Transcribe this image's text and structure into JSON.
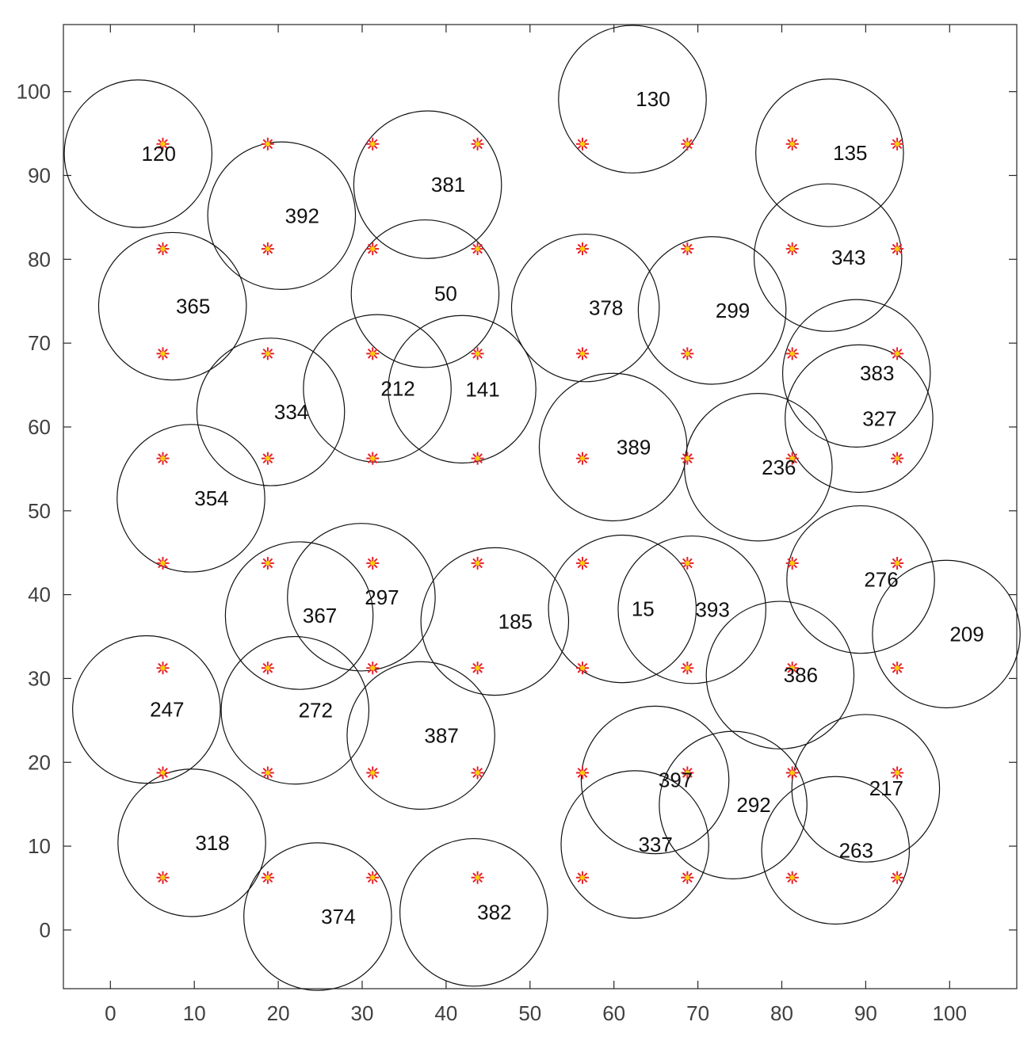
{
  "chart_data": {
    "type": "scatter",
    "title": "",
    "xlabel": "",
    "ylabel": "",
    "xlim": [
      -5.6,
      108
    ],
    "ylim": [
      -7,
      108
    ],
    "grid": false,
    "x_ticks": [
      0,
      10,
      20,
      30,
      40,
      50,
      60,
      70,
      80,
      90,
      100
    ],
    "y_ticks": [
      0,
      10,
      20,
      30,
      40,
      50,
      60,
      70,
      80,
      90,
      100
    ],
    "circle_radius": 8.8,
    "circle_color": "#111111",
    "marker_colors": {
      "star": "#e8202a",
      "center": "#f5d000"
    },
    "markers": {
      "x": [
        6.25,
        18.75,
        31.25,
        43.75,
        56.25,
        68.75,
        81.25,
        93.75
      ],
      "y": [
        6.25,
        18.75,
        31.25,
        43.75,
        56.25,
        68.75,
        81.25,
        93.75
      ]
    },
    "circles": [
      {
        "label": "120",
        "x": 3.3,
        "y": 92.6
      },
      {
        "label": "392",
        "x": 20.4,
        "y": 85.2
      },
      {
        "label": "381",
        "x": 37.8,
        "y": 88.9
      },
      {
        "label": "130",
        "x": 62.2,
        "y": 99.1
      },
      {
        "label": "135",
        "x": 85.7,
        "y": 92.7
      },
      {
        "label": "343",
        "x": 85.5,
        "y": 80.2
      },
      {
        "label": "365",
        "x": 7.4,
        "y": 74.4
      },
      {
        "label": "50",
        "x": 37.5,
        "y": 75.9
      },
      {
        "label": "378",
        "x": 56.6,
        "y": 74.2
      },
      {
        "label": "299",
        "x": 71.7,
        "y": 73.9
      },
      {
        "label": "383",
        "x": 88.9,
        "y": 66.4
      },
      {
        "label": "327",
        "x": 89.2,
        "y": 61.0
      },
      {
        "label": "334",
        "x": 19.1,
        "y": 61.8
      },
      {
        "label": "212",
        "x": 31.8,
        "y": 64.6
      },
      {
        "label": "141",
        "x": 41.9,
        "y": 64.5
      },
      {
        "label": "389",
        "x": 59.9,
        "y": 57.6
      },
      {
        "label": "236",
        "x": 77.2,
        "y": 55.2
      },
      {
        "label": "354",
        "x": 9.6,
        "y": 51.5
      },
      {
        "label": "276",
        "x": 89.4,
        "y": 41.8
      },
      {
        "label": "209",
        "x": 99.6,
        "y": 35.3
      },
      {
        "label": "367",
        "x": 22.5,
        "y": 37.5
      },
      {
        "label": "297",
        "x": 29.9,
        "y": 39.7
      },
      {
        "label": "185",
        "x": 45.8,
        "y": 36.8
      },
      {
        "label": "15",
        "x": 61.0,
        "y": 38.3
      },
      {
        "label": "393",
        "x": 69.3,
        "y": 38.2
      },
      {
        "label": "386",
        "x": 79.8,
        "y": 30.4
      },
      {
        "label": "247",
        "x": 4.3,
        "y": 26.3
      },
      {
        "label": "272",
        "x": 22.0,
        "y": 26.2
      },
      {
        "label": "387",
        "x": 37.0,
        "y": 23.2
      },
      {
        "label": "397",
        "x": 64.9,
        "y": 17.9
      },
      {
        "label": "292",
        "x": 74.2,
        "y": 14.9
      },
      {
        "label": "217",
        "x": 90.0,
        "y": 16.9
      },
      {
        "label": "318",
        "x": 9.7,
        "y": 10.4
      },
      {
        "label": "337",
        "x": 62.5,
        "y": 10.2
      },
      {
        "label": "263",
        "x": 86.4,
        "y": 9.5
      },
      {
        "label": "374",
        "x": 24.7,
        "y": 1.6
      },
      {
        "label": "382",
        "x": 43.3,
        "y": 2.1
      }
    ]
  }
}
